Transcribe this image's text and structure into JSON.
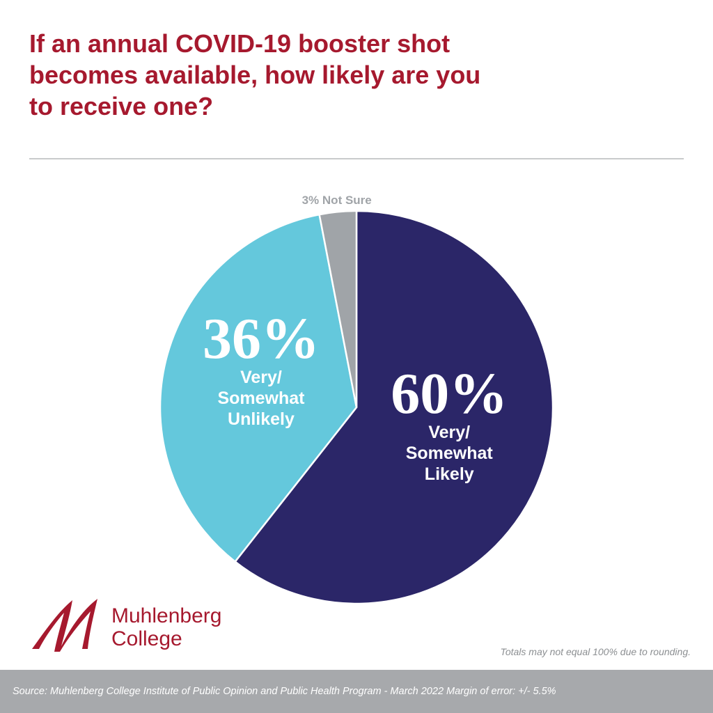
{
  "chart_data": {
    "type": "pie",
    "title": "If an annual COVID-19 booster shot becomes available, how likely are you to receive one?",
    "categories": [
      "Very/ Somewhat Likely",
      "Very/ Somewhat Unlikely",
      "Not Sure"
    ],
    "values": [
      60,
      36,
      3
    ],
    "value_labels": [
      "60%",
      "36%",
      "3%"
    ],
    "colors": [
      "#2b2668",
      "#64c8dc",
      "#a0a4a8"
    ],
    "footnote": "Totals may not equal 100% due to rounding.",
    "source": "Source: Muhlenberg College Institute of Public Opinion and Public Health Program - March 2022 Margin of error: +/- 5.5%"
  },
  "logo": {
    "lines": [
      "Muhlenberg",
      "College"
    ]
  }
}
